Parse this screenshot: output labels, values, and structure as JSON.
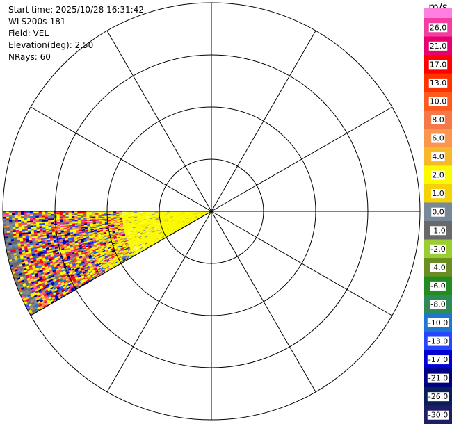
{
  "info": {
    "start_time": "Start time: 2025/10/28 16:31:42",
    "instrument": "WLS200s-181",
    "field": "Field: VEL",
    "elevation": "Elevation(deg): 2.50",
    "nrays": "NRays: 60"
  },
  "chart_data": {
    "type": "heatmap",
    "projection": "polar-ppi",
    "field": "VEL",
    "elevation_deg": 2.5,
    "n_rays": 60,
    "sector_azimuth_deg": [
      240,
      270
    ],
    "range_rings": 4,
    "radial_spokes_every_deg": 30,
    "colorbar": {
      "unit": "m/s",
      "tick_labels": [
        "26.0",
        "21.0",
        "17.0",
        "13.0",
        "10.0",
        "8.0",
        "6.0",
        "4.0",
        "2.0",
        "1.0",
        "0.0",
        "-1.0",
        "-2.0",
        "-4.0",
        "-6.0",
        "-8.0",
        "-10.0",
        "-13.0",
        "-17.0",
        "-21.0",
        "-26.0",
        "-30.0"
      ],
      "colors": [
        "#f53ca0",
        "#e8006e",
        "#ff0000",
        "#ff3300",
        "#ff5a1e",
        "#f5784b",
        "#fa9650",
        "#f7b92a",
        "#fafa00",
        "#f5d10a",
        "#778899",
        "#696969",
        "#9acd32",
        "#6b8e23",
        "#228b22",
        "#2e8b57",
        "#1e78d2",
        "#2846ff",
        "#0000d0",
        "#000080",
        "#0a1e5a",
        "#1e1e64"
      ],
      "top_color": "#ff80e0"
    },
    "sample_palette": [
      "#f53ca0",
      "#ff0000",
      "#ff5a1e",
      "#fafa00",
      "#f5d10a",
      "#778899",
      "#696969",
      "#1e78d2",
      "#2846ff",
      "#0000d0",
      "#000080",
      "#e8006e",
      "#f5784b",
      "#fa9650"
    ]
  }
}
